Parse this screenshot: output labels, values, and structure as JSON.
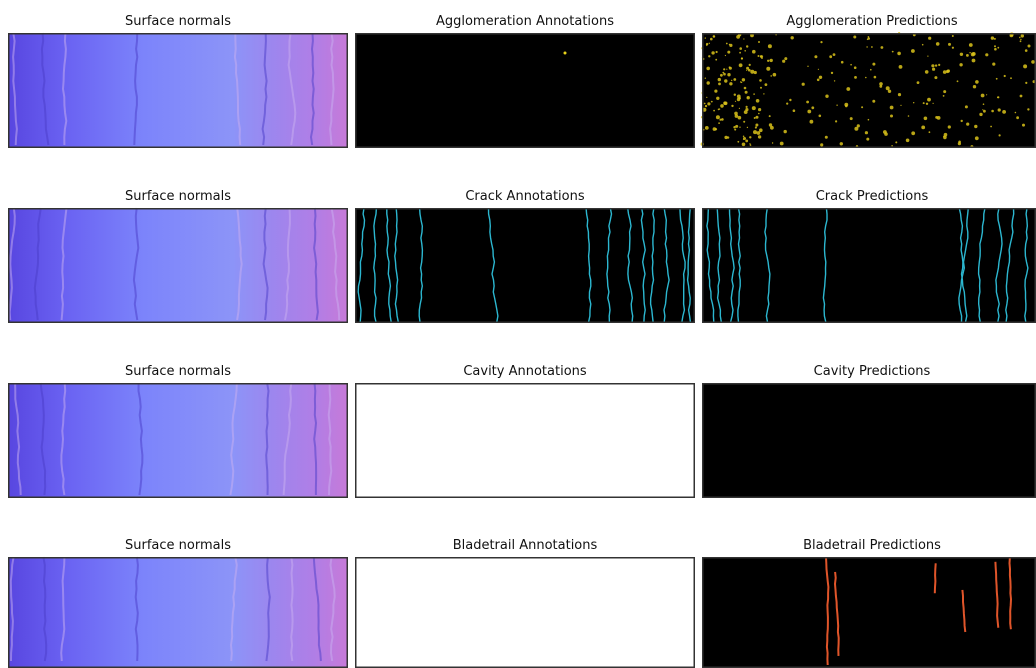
{
  "rows": [
    {
      "panels": [
        "Surface normals",
        "Agglomeration Annotations",
        "Agglomeration Predictions"
      ]
    },
    {
      "panels": [
        "Surface normals",
        "Crack Annotations",
        "Crack Predictions"
      ]
    },
    {
      "panels": [
        "Surface normals",
        "Cavity Annotations",
        "Cavity Predictions"
      ]
    },
    {
      "panels": [
        "Surface normals",
        "Bladetrail Annotations",
        "Bladetrail Predictions"
      ]
    }
  ]
}
